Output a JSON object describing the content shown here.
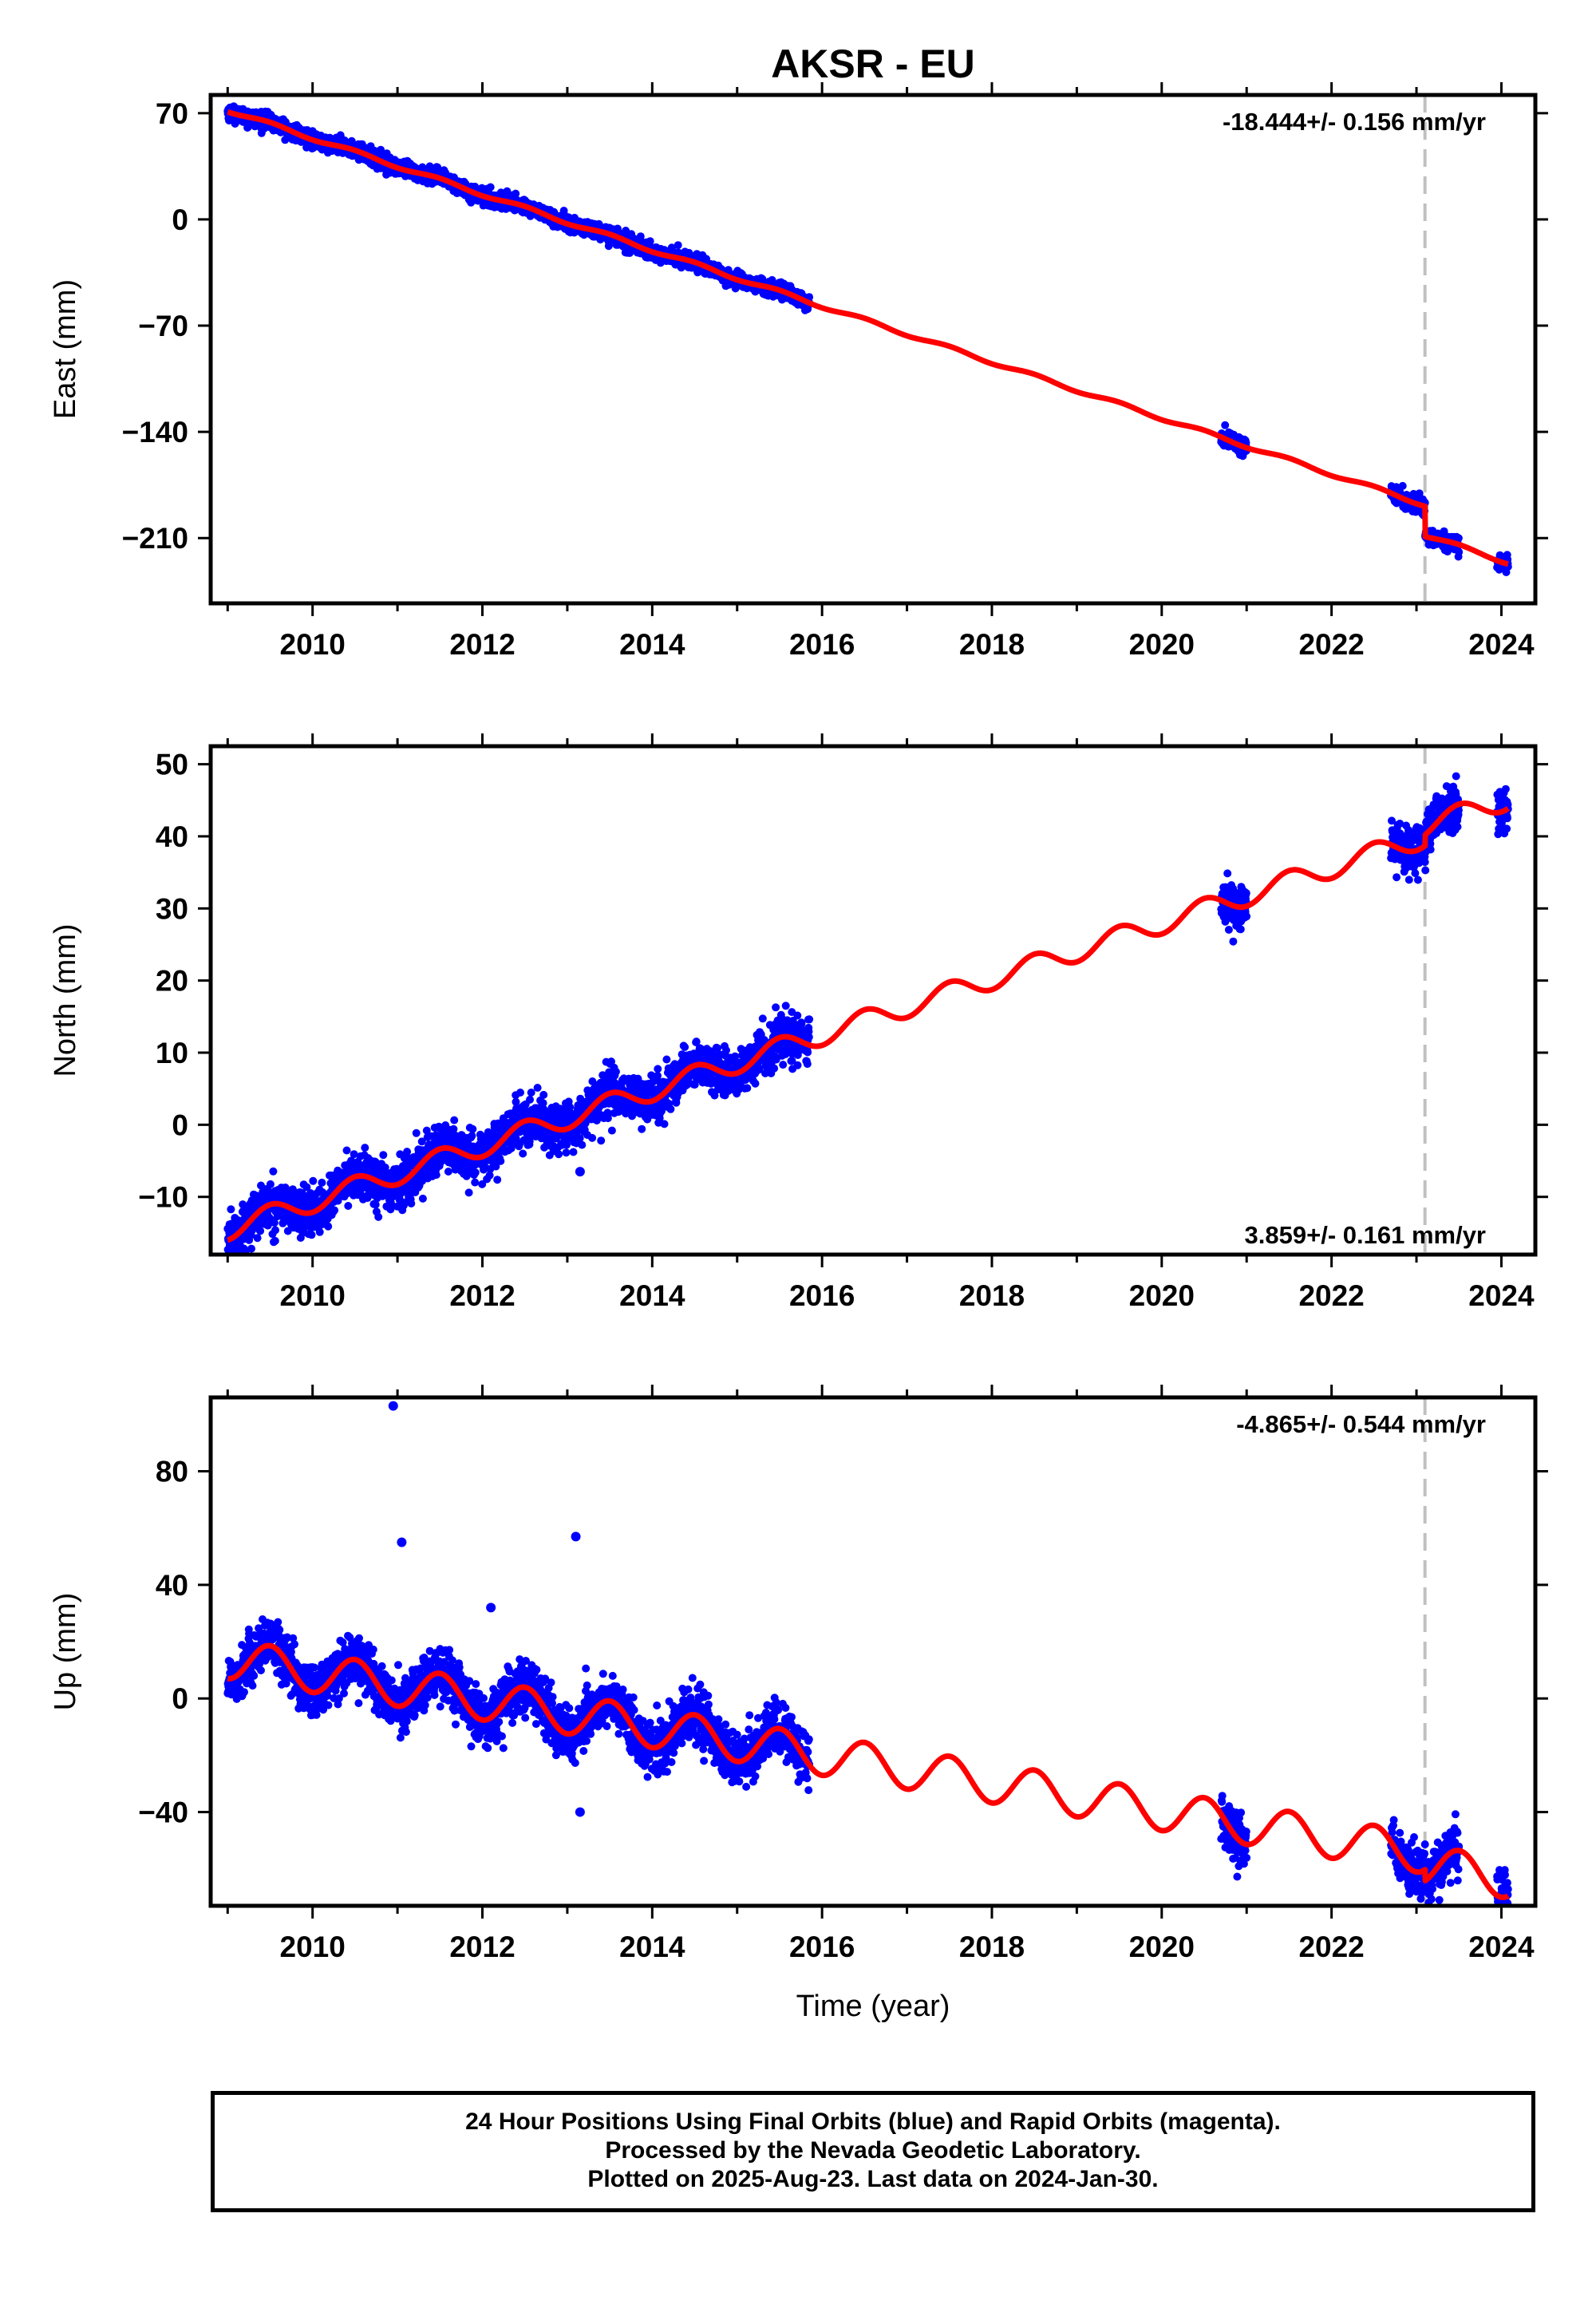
{
  "title": "AKSR - EU",
  "colors": {
    "data": "#0000ff",
    "model": "#ff0000",
    "event": "#c0c0c0"
  },
  "chart_data": [
    {
      "type": "scatter",
      "name": "east",
      "ylabel": "East (mm)",
      "xlim": [
        2008.8,
        2024.4
      ],
      "ylim": [
        -253,
        82
      ],
      "yticks": [
        70,
        0,
        -70,
        -140,
        -210
      ],
      "xticks": [
        2010,
        2012,
        2014,
        2016,
        2018,
        2020,
        2022,
        2024
      ],
      "rate": "-18.444+/- 0.156 mm/yr",
      "rate_position": "top-right",
      "event_year": 2023.1,
      "trend": {
        "intercept_2009": 72,
        "slope": -18.444,
        "seasonal_amp": 1.2
      },
      "offsets": [
        {
          "year": 2023.1,
          "size": -20
        }
      ],
      "data_segments": [
        [
          2009.0,
          2015.85
        ],
        [
          2020.7,
          2021.0
        ],
        [
          2022.7,
          2023.5
        ],
        [
          2023.95,
          2024.08
        ]
      ],
      "noise": 2.5,
      "outliers": []
    },
    {
      "type": "scatter",
      "name": "north",
      "ylabel": "North (mm)",
      "xlim": [
        2008.8,
        2024.4
      ],
      "ylim": [
        -18,
        52.5
      ],
      "yticks": [
        50,
        40,
        30,
        20,
        10,
        0,
        -10
      ],
      "xticks": [
        2010,
        2012,
        2014,
        2016,
        2018,
        2020,
        2022,
        2024
      ],
      "rate": "3.859+/- 0.161 mm/yr",
      "rate_position": "bottom-right",
      "event_year": 2023.1,
      "trend": {
        "intercept_2009": -14.5,
        "slope": 3.859,
        "seasonal_amp": 1.5
      },
      "offsets": [
        {
          "year": 2023.1,
          "size": 1.5
        }
      ],
      "data_segments": [
        [
          2009.0,
          2015.85
        ],
        [
          2020.7,
          2021.0
        ],
        [
          2022.7,
          2023.5
        ],
        [
          2023.95,
          2024.08
        ]
      ],
      "noise": 1.6,
      "outliers": [
        [
          2013.15,
          -6.5
        ]
      ]
    },
    {
      "type": "scatter",
      "name": "up",
      "ylabel": "Up (mm)",
      "xlabel": "Time (year)",
      "xlim": [
        2008.8,
        2024.4
      ],
      "ylim": [
        -73,
        106
      ],
      "yticks": [
        80,
        40,
        0,
        -40
      ],
      "xticks": [
        2010,
        2012,
        2014,
        2016,
        2018,
        2020,
        2022,
        2024
      ],
      "rate": "-4.865+/- 0.544 mm/yr",
      "rate_position": "top-right",
      "event_year": 2023.1,
      "trend": {
        "intercept_2009": 14,
        "slope": -4.865,
        "seasonal_amp": 7
      },
      "offsets": [
        {
          "year": 2023.1,
          "size": -4
        }
      ],
      "data_segments": [
        [
          2009.0,
          2015.85
        ],
        [
          2020.7,
          2021.0
        ],
        [
          2022.7,
          2023.5
        ],
        [
          2023.95,
          2024.08
        ]
      ],
      "noise": 4.5,
      "outliers": [
        [
          2010.95,
          103
        ],
        [
          2011.05,
          55
        ],
        [
          2013.1,
          57
        ],
        [
          2012.1,
          32
        ],
        [
          2013.15,
          -40
        ]
      ]
    }
  ],
  "footer": {
    "line1": "24 Hour Positions Using Final Orbits (blue) and Rapid Orbits (magenta).",
    "line2": "Processed by the Nevada Geodetic Laboratory.",
    "line3": "Plotted on 2025-Aug-23. Last data on 2024-Jan-30."
  }
}
